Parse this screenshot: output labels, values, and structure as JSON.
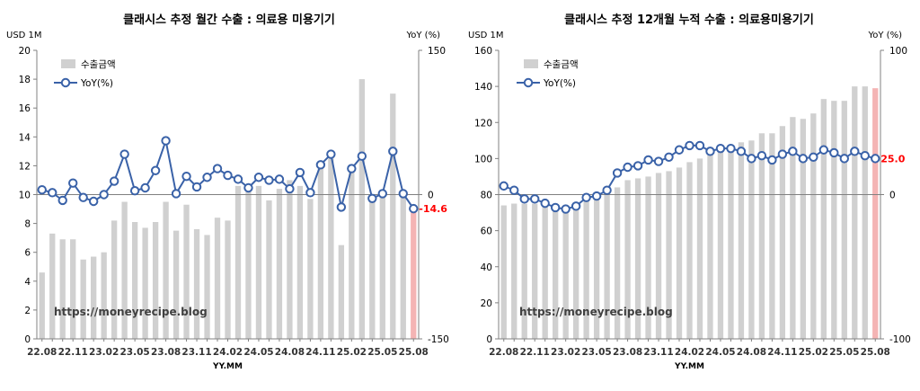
{
  "chart_data": [
    {
      "type": "bar",
      "title": "클래시스 추정 월간 수출 : 의료용 미용기기",
      "left_unit": "USD 1M",
      "right_unit": "YoY (%)",
      "xlabel": "YY.MM",
      "watermark": "https://moneyrecipe.blog",
      "left_ylim": [
        0,
        20
      ],
      "left_ticks": [
        "0",
        "2",
        "4",
        "6",
        "8",
        "10",
        "12",
        "14",
        "16",
        "18",
        "20"
      ],
      "right_ylim": [
        -150,
        150
      ],
      "right_ticks": [
        "-150",
        "0",
        "150"
      ],
      "right_tick_values": [
        -150,
        0,
        150
      ],
      "categories": [
        "22.08",
        "22.09",
        "22.10",
        "22.11",
        "22.12",
        "23.01",
        "23.02",
        "23.03",
        "23.04",
        "23.05",
        "23.06",
        "23.07",
        "23.08",
        "23.09",
        "23.10",
        "23.11",
        "23.12",
        "24.01",
        "24.02",
        "24.03",
        "24.04",
        "24.05",
        "24.06",
        "24.07",
        "24.08",
        "24.09",
        "24.10",
        "24.11",
        "24.12",
        "25.01",
        "25.02",
        "25.03",
        "25.04",
        "25.05",
        "25.06",
        "25.07",
        "25.08"
      ],
      "x_tick_labels": [
        "22.08",
        "22.11",
        "23.02",
        "23.05",
        "23.08",
        "23.11",
        "24.02",
        "24.05",
        "24.08",
        "24.11",
        "25.02",
        "25.05",
        "25.08"
      ],
      "series": [
        {
          "name": "수출금액",
          "axis": "left",
          "kind": "bar",
          "color": "#d0d0d0",
          "last_color": "#f4b4b4",
          "values": [
            4.6,
            7.3,
            6.9,
            6.9,
            5.5,
            5.7,
            6.0,
            8.2,
            9.5,
            8.1,
            7.7,
            8.1,
            9.5,
            7.5,
            9.3,
            7.6,
            7.2,
            8.4,
            8.2,
            10.6,
            10.6,
            10.6,
            9.6,
            10.4,
            11.0,
            10.6,
            9.7,
            12.0,
            12.5,
            6.5,
            12.1,
            18.0,
            9.8,
            10.2,
            17.0,
            10.1,
            9.0
          ]
        },
        {
          "name": "YoY(%)",
          "axis": "right",
          "kind": "line",
          "color": "#3a62a8",
          "values": [
            5,
            2,
            -6,
            12,
            -3,
            -7,
            0,
            14,
            42,
            4,
            7,
            25,
            56,
            1,
            19,
            8,
            18,
            27,
            20,
            16,
            7,
            18,
            15,
            16,
            6,
            23,
            2,
            31,
            42,
            -13,
            27,
            40,
            -4,
            1,
            45,
            1,
            -14.6
          ]
        }
      ],
      "last_label": "-14.6",
      "legend": "top-left"
    },
    {
      "type": "bar",
      "title": "클래시스 추정 12개월 누적 수출 : 의료용미용기기",
      "left_unit": "USD 1M",
      "right_unit": "YoY (%)",
      "xlabel": "YY.MM",
      "watermark": "https://moneyrecipe.blog",
      "left_ylim": [
        0,
        160
      ],
      "left_ticks": [
        "0",
        "20",
        "40",
        "60",
        "80",
        "100",
        "120",
        "140",
        "160"
      ],
      "right_ylim": [
        -100,
        100
      ],
      "right_ticks": [
        "-100",
        "0",
        "100"
      ],
      "right_tick_values": [
        -100,
        0,
        100
      ],
      "categories": [
        "22.08",
        "22.09",
        "22.10",
        "22.11",
        "22.12",
        "23.01",
        "23.02",
        "23.03",
        "23.04",
        "23.05",
        "23.06",
        "23.07",
        "23.08",
        "23.09",
        "23.10",
        "23.11",
        "23.12",
        "24.01",
        "24.02",
        "24.03",
        "24.04",
        "24.05",
        "24.06",
        "24.07",
        "24.08",
        "24.09",
        "24.10",
        "24.11",
        "24.12",
        "25.01",
        "25.02",
        "25.03",
        "25.04",
        "25.05",
        "25.06",
        "25.07",
        "25.08"
      ],
      "x_tick_labels": [
        "22.08",
        "22.11",
        "23.02",
        "23.05",
        "23.08",
        "23.11",
        "24.02",
        "24.05",
        "24.08",
        "24.11",
        "25.02",
        "25.05",
        "25.08"
      ],
      "series": [
        {
          "name": "수출금액",
          "axis": "left",
          "kind": "bar",
          "color": "#d0d0d0",
          "last_color": "#f4b4b4",
          "values": [
            74,
            75,
            75,
            75,
            74,
            73,
            73,
            75,
            77,
            79,
            81,
            84,
            88,
            89,
            90,
            92,
            93,
            95,
            98,
            100,
            103,
            105,
            107,
            109,
            110,
            114,
            114,
            118,
            123,
            122,
            125,
            133,
            132,
            132,
            140,
            140,
            139
          ]
        },
        {
          "name": "YoY(%)",
          "axis": "right",
          "kind": "line",
          "color": "#3a62a8",
          "values": [
            6,
            3,
            -3,
            -3,
            -6,
            -9,
            -10,
            -8,
            -2,
            -1,
            3,
            15,
            19,
            20,
            24,
            23,
            26,
            31,
            34,
            34,
            30,
            32,
            32,
            30,
            25,
            27,
            24,
            28,
            30,
            25,
            26,
            31,
            29,
            25,
            30,
            27,
            25.0
          ]
        }
      ],
      "last_label": "25.0",
      "legend": "top-left"
    }
  ]
}
